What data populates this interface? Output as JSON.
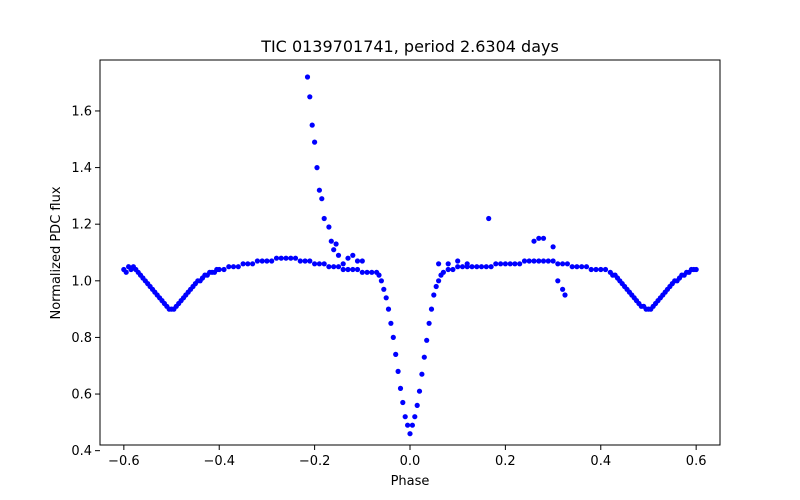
{
  "chart_data": {
    "type": "scatter",
    "title": "TIC 0139701741, period 2.6304 days",
    "xlabel": "Phase",
    "ylabel": "Normalized PDC flux",
    "xlim": [
      -0.65,
      0.65
    ],
    "ylim": [
      0.42,
      1.78
    ],
    "xticks": [
      -0.6,
      -0.4,
      -0.2,
      0.0,
      0.2,
      0.4,
      0.6
    ],
    "xtick_labels": [
      "−0.6",
      "−0.4",
      "−0.2",
      "0.0",
      "0.2",
      "0.4",
      "0.6"
    ],
    "yticks": [
      0.4,
      0.6,
      0.8,
      1.0,
      1.2,
      1.4,
      1.6
    ],
    "ytick_labels": [
      "0.4",
      "0.6",
      "0.8",
      "1.0",
      "1.2",
      "1.4",
      "1.6"
    ],
    "grid": false,
    "marker_color": "#0000ff",
    "series": [
      {
        "points": [
          [
            -0.6,
            1.04
          ],
          [
            -0.595,
            1.03
          ],
          [
            -0.59,
            1.05
          ],
          [
            -0.585,
            1.04
          ],
          [
            -0.58,
            1.05
          ],
          [
            -0.575,
            1.04
          ],
          [
            -0.57,
            1.03
          ],
          [
            -0.565,
            1.02
          ],
          [
            -0.56,
            1.01
          ],
          [
            -0.555,
            1.0
          ],
          [
            -0.55,
            0.99
          ],
          [
            -0.545,
            0.98
          ],
          [
            -0.54,
            0.97
          ],
          [
            -0.535,
            0.96
          ],
          [
            -0.53,
            0.95
          ],
          [
            -0.525,
            0.94
          ],
          [
            -0.52,
            0.93
          ],
          [
            -0.515,
            0.92
          ],
          [
            -0.51,
            0.91
          ],
          [
            -0.505,
            0.9
          ],
          [
            -0.5,
            0.9
          ],
          [
            -0.495,
            0.9
          ],
          [
            -0.49,
            0.91
          ],
          [
            -0.485,
            0.92
          ],
          [
            -0.48,
            0.93
          ],
          [
            -0.475,
            0.94
          ],
          [
            -0.47,
            0.95
          ],
          [
            -0.465,
            0.96
          ],
          [
            -0.46,
            0.97
          ],
          [
            -0.455,
            0.98
          ],
          [
            -0.45,
            0.99
          ],
          [
            -0.445,
            1.0
          ],
          [
            -0.44,
            1.0
          ],
          [
            -0.435,
            1.01
          ],
          [
            -0.43,
            1.02
          ],
          [
            -0.425,
            1.02
          ],
          [
            -0.42,
            1.03
          ],
          [
            -0.415,
            1.03
          ],
          [
            -0.41,
            1.03
          ],
          [
            -0.405,
            1.04
          ],
          [
            -0.4,
            1.04
          ],
          [
            -0.39,
            1.04
          ],
          [
            -0.38,
            1.05
          ],
          [
            -0.37,
            1.05
          ],
          [
            -0.36,
            1.05
          ],
          [
            -0.35,
            1.06
          ],
          [
            -0.34,
            1.06
          ],
          [
            -0.33,
            1.06
          ],
          [
            -0.32,
            1.07
          ],
          [
            -0.31,
            1.07
          ],
          [
            -0.3,
            1.07
          ],
          [
            -0.29,
            1.07
          ],
          [
            -0.28,
            1.08
          ],
          [
            -0.27,
            1.08
          ],
          [
            -0.26,
            1.08
          ],
          [
            -0.25,
            1.08
          ],
          [
            -0.24,
            1.08
          ],
          [
            -0.23,
            1.07
          ],
          [
            -0.22,
            1.07
          ],
          [
            -0.21,
            1.07
          ],
          [
            -0.2,
            1.06
          ],
          [
            -0.19,
            1.06
          ],
          [
            -0.18,
            1.06
          ],
          [
            -0.17,
            1.05
          ],
          [
            -0.16,
            1.05
          ],
          [
            -0.15,
            1.05
          ],
          [
            -0.14,
            1.04
          ],
          [
            -0.13,
            1.04
          ],
          [
            -0.12,
            1.04
          ],
          [
            -0.11,
            1.04
          ],
          [
            -0.1,
            1.03
          ],
          [
            -0.09,
            1.03
          ],
          [
            -0.08,
            1.03
          ],
          [
            -0.07,
            1.03
          ],
          [
            -0.065,
            1.02
          ],
          [
            -0.06,
            1.0
          ],
          [
            -0.055,
            0.97
          ],
          [
            -0.05,
            0.94
          ],
          [
            -0.045,
            0.9
          ],
          [
            -0.04,
            0.85
          ],
          [
            -0.035,
            0.8
          ],
          [
            -0.03,
            0.74
          ],
          [
            -0.025,
            0.68
          ],
          [
            -0.02,
            0.62
          ],
          [
            -0.015,
            0.57
          ],
          [
            -0.01,
            0.52
          ],
          [
            -0.005,
            0.49
          ],
          [
            0.0,
            0.46
          ],
          [
            0.005,
            0.49
          ],
          [
            0.01,
            0.52
          ],
          [
            0.015,
            0.56
          ],
          [
            0.02,
            0.61
          ],
          [
            0.025,
            0.67
          ],
          [
            0.03,
            0.73
          ],
          [
            0.035,
            0.79
          ],
          [
            0.04,
            0.85
          ],
          [
            0.045,
            0.9
          ],
          [
            0.05,
            0.95
          ],
          [
            0.055,
            0.98
          ],
          [
            0.06,
            1.0
          ],
          [
            0.065,
            1.02
          ],
          [
            0.07,
            1.03
          ],
          [
            0.08,
            1.04
          ],
          [
            0.09,
            1.04
          ],
          [
            0.1,
            1.05
          ],
          [
            0.11,
            1.05
          ],
          [
            0.12,
            1.05
          ],
          [
            0.13,
            1.05
          ],
          [
            0.14,
            1.05
          ],
          [
            0.15,
            1.05
          ],
          [
            0.16,
            1.05
          ],
          [
            0.17,
            1.05
          ],
          [
            0.18,
            1.06
          ],
          [
            0.19,
            1.06
          ],
          [
            0.2,
            1.06
          ],
          [
            0.21,
            1.06
          ],
          [
            0.22,
            1.06
          ],
          [
            0.23,
            1.06
          ],
          [
            0.24,
            1.07
          ],
          [
            0.25,
            1.07
          ],
          [
            0.26,
            1.07
          ],
          [
            0.27,
            1.07
          ],
          [
            0.28,
            1.07
          ],
          [
            0.29,
            1.07
          ],
          [
            0.3,
            1.07
          ],
          [
            0.31,
            1.06
          ],
          [
            0.32,
            1.06
          ],
          [
            0.33,
            1.06
          ],
          [
            0.34,
            1.05
          ],
          [
            0.35,
            1.05
          ],
          [
            0.36,
            1.05
          ],
          [
            0.37,
            1.05
          ],
          [
            0.38,
            1.04
          ],
          [
            0.39,
            1.04
          ],
          [
            0.4,
            1.04
          ],
          [
            0.41,
            1.04
          ],
          [
            0.42,
            1.03
          ],
          [
            0.425,
            1.02
          ],
          [
            0.43,
            1.02
          ],
          [
            0.435,
            1.01
          ],
          [
            0.44,
            1.0
          ],
          [
            0.445,
            0.99
          ],
          [
            0.45,
            0.98
          ],
          [
            0.455,
            0.97
          ],
          [
            0.46,
            0.96
          ],
          [
            0.465,
            0.95
          ],
          [
            0.47,
            0.94
          ],
          [
            0.475,
            0.93
          ],
          [
            0.48,
            0.92
          ],
          [
            0.485,
            0.91
          ],
          [
            0.49,
            0.91
          ],
          [
            0.495,
            0.9
          ],
          [
            0.5,
            0.9
          ],
          [
            0.505,
            0.9
          ],
          [
            0.51,
            0.91
          ],
          [
            0.515,
            0.92
          ],
          [
            0.52,
            0.93
          ],
          [
            0.525,
            0.94
          ],
          [
            0.53,
            0.95
          ],
          [
            0.535,
            0.96
          ],
          [
            0.54,
            0.97
          ],
          [
            0.545,
            0.98
          ],
          [
            0.55,
            0.99
          ],
          [
            0.555,
            1.0
          ],
          [
            0.56,
            1.0
          ],
          [
            0.565,
            1.01
          ],
          [
            0.57,
            1.02
          ],
          [
            0.575,
            1.02
          ],
          [
            0.58,
            1.03
          ],
          [
            0.585,
            1.03
          ],
          [
            0.59,
            1.04
          ],
          [
            0.595,
            1.04
          ],
          [
            0.6,
            1.04
          ],
          [
            -0.215,
            1.72
          ],
          [
            -0.21,
            1.65
          ],
          [
            -0.205,
            1.55
          ],
          [
            -0.2,
            1.49
          ],
          [
            -0.195,
            1.4
          ],
          [
            -0.19,
            1.32
          ],
          [
            -0.185,
            1.29
          ],
          [
            -0.18,
            1.22
          ],
          [
            -0.17,
            1.19
          ],
          [
            -0.165,
            1.14
          ],
          [
            -0.16,
            1.11
          ],
          [
            -0.155,
            1.13
          ],
          [
            -0.15,
            1.09
          ],
          [
            -0.14,
            1.06
          ],
          [
            -0.13,
            1.08
          ],
          [
            -0.12,
            1.09
          ],
          [
            -0.11,
            1.07
          ],
          [
            -0.1,
            1.07
          ],
          [
            0.165,
            1.22
          ],
          [
            0.26,
            1.14
          ],
          [
            0.27,
            1.15
          ],
          [
            0.28,
            1.15
          ],
          [
            0.3,
            1.12
          ],
          [
            0.31,
            1.0
          ],
          [
            0.32,
            0.97
          ],
          [
            0.325,
            0.95
          ],
          [
            0.1,
            1.07
          ],
          [
            0.12,
            1.06
          ],
          [
            0.06,
            1.06
          ],
          [
            0.08,
            1.06
          ]
        ]
      }
    ]
  }
}
